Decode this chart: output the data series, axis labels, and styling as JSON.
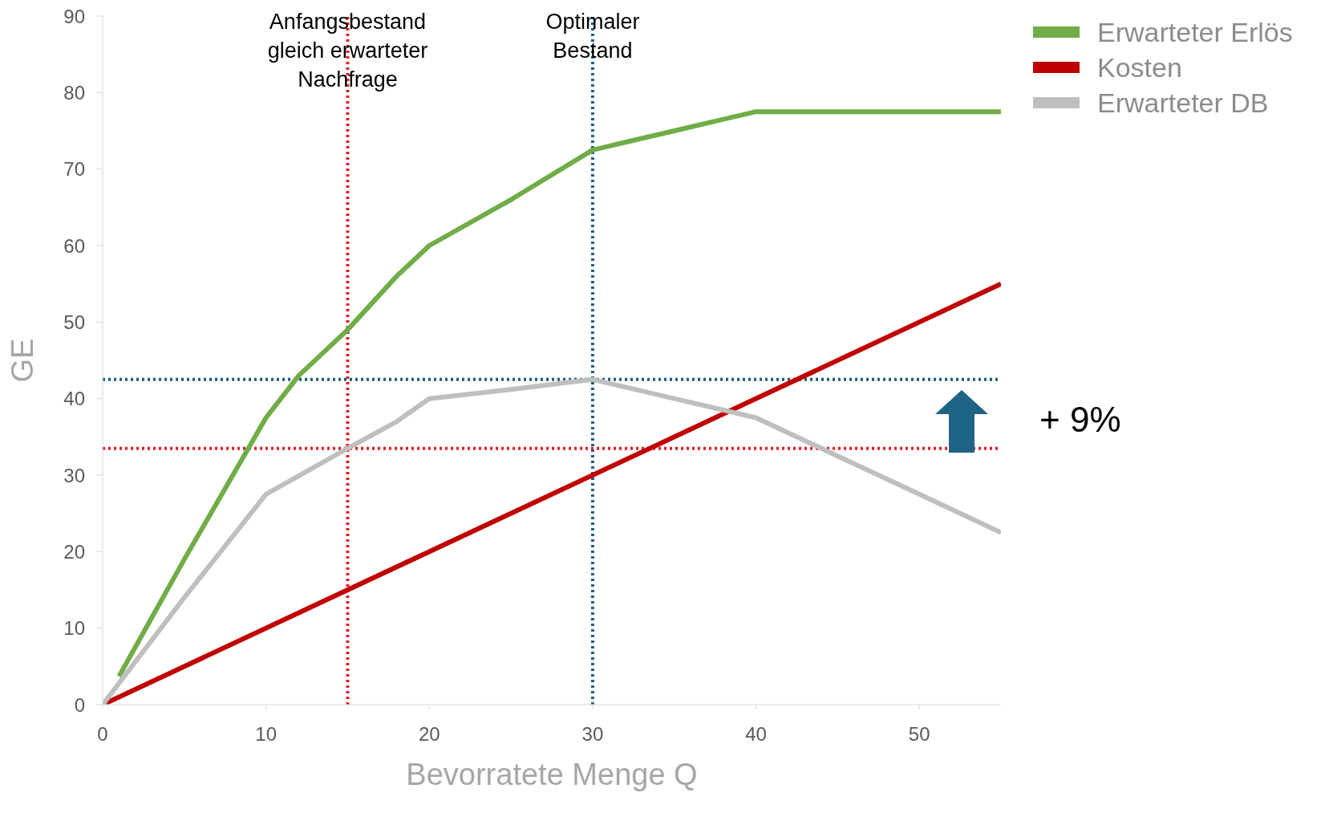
{
  "chart_data": {
    "type": "line",
    "xlabel": "Bevorratete Menge Q",
    "ylabel": "GE",
    "xlim": [
      0,
      55
    ],
    "xticks": [
      0,
      10,
      20,
      30,
      40,
      50
    ],
    "ylim": [
      0,
      90
    ],
    "yticks": [
      0,
      10,
      20,
      30,
      40,
      50,
      60,
      70,
      80,
      90
    ],
    "grid": false,
    "legend": "top right",
    "marker": "none",
    "line_style": "solid",
    "series": [
      {
        "name": "Erwarteter Erlös",
        "color": "#70ad47",
        "x": [
          1,
          5,
          10,
          12,
          15,
          18,
          20,
          25,
          30,
          35,
          38,
          40,
          55
        ],
        "values": [
          3.7,
          19,
          37.5,
          43,
          49,
          56,
          60,
          66,
          72.5,
          75,
          76.5,
          77.5,
          77.5
        ]
      },
      {
        "name": "Kosten",
        "color": "#c00000",
        "x": [
          0,
          55
        ],
        "values": [
          0,
          55
        ]
      },
      {
        "name": "Erwarteter DB",
        "color": "#bfbfbf",
        "x": [
          0,
          5,
          10,
          15,
          18,
          20,
          25,
          30,
          35,
          40,
          45,
          50,
          55
        ],
        "values": [
          0,
          14,
          27.5,
          33.5,
          37,
          40,
          41.2,
          42.5,
          40,
          37.5,
          32.5,
          27.5,
          22.5
        ]
      }
    ],
    "ref_lines": [
      {
        "axis": "x",
        "value": 15,
        "label": "Anfangsbestand\ngleich erwarteter\nNachfrage",
        "color": "#e0202a",
        "line_style": "dotted"
      },
      {
        "axis": "x",
        "value": 30,
        "label": "Optimaler\nBestand",
        "color": "#1f5f7a",
        "line_style": "dotted"
      },
      {
        "axis": "y",
        "value": 42.5,
        "color": "#1f5f7a",
        "line_style": "dotted"
      },
      {
        "axis": "y",
        "value": 33.5,
        "color": "#e0202a",
        "line_style": "dotted"
      }
    ],
    "annotations": [
      "+ 9%"
    ]
  }
}
